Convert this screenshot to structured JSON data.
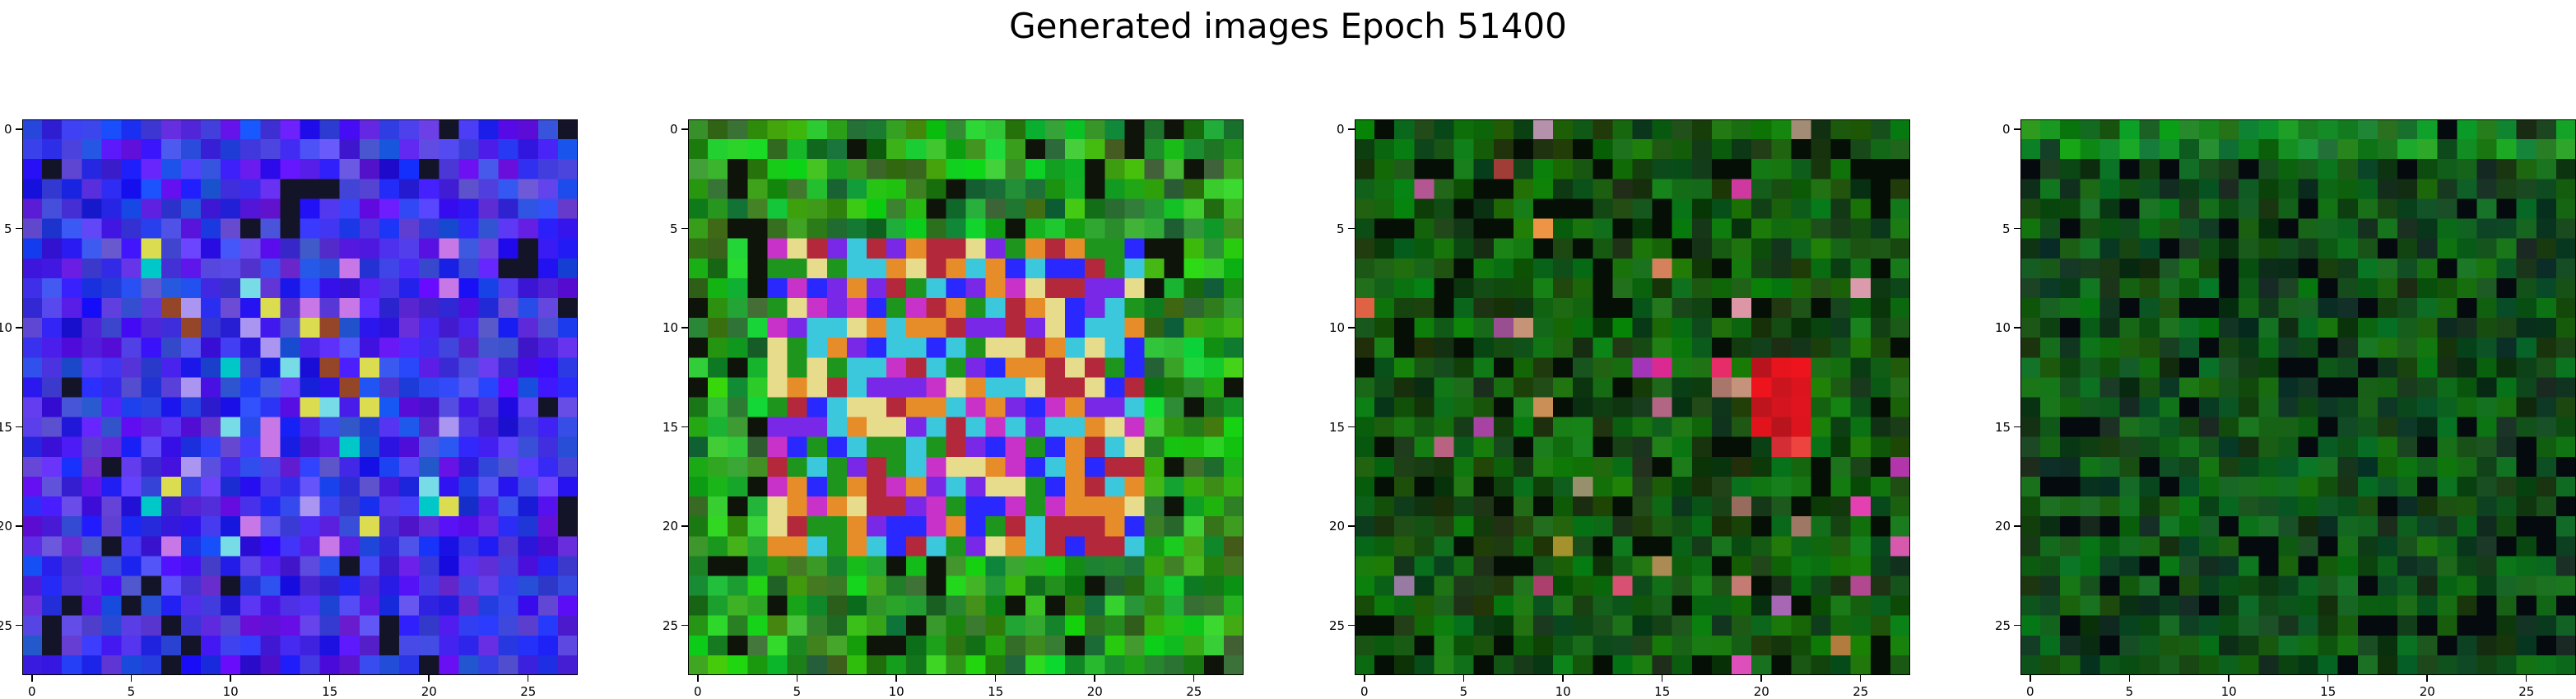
{
  "figure": {
    "title": "Generated images Epoch 51400"
  },
  "chart_data": [
    {
      "type": "heatmap",
      "description_palette": "blue",
      "grid_size": [
        28,
        28
      ],
      "xlim": [
        -0.5,
        27.5
      ],
      "ylim": [
        27.5,
        -0.5
      ],
      "x_ticks": [
        "0",
        "5",
        "10",
        "15",
        "20",
        "25"
      ],
      "y_ticks": [
        "0",
        "5",
        "10",
        "15",
        "20",
        "25"
      ],
      "dominant_color": "#1414e6"
    },
    {
      "type": "heatmap",
      "description_palette": "green-with-multicolor-center",
      "grid_size": [
        28,
        28
      ],
      "xlim": [
        -0.5,
        27.5
      ],
      "ylim": [
        27.5,
        -0.5
      ],
      "x_ticks": [
        "0",
        "5",
        "10",
        "15",
        "20",
        "25"
      ],
      "y_ticks": [
        "0",
        "5",
        "10",
        "15",
        "20",
        "25"
      ],
      "dominant_color": "#1a6a1a"
    },
    {
      "type": "heatmap",
      "description_palette": "dark-green-with-red-spots",
      "grid_size": [
        28,
        28
      ],
      "xlim": [
        -0.5,
        27.5
      ],
      "ylim": [
        27.5,
        -0.5
      ],
      "x_ticks": [
        "0",
        "5",
        "10",
        "15",
        "20",
        "25"
      ],
      "y_ticks": [
        "0",
        "5",
        "10",
        "15",
        "20",
        "25"
      ],
      "dominant_color": "#0f4a0f"
    },
    {
      "type": "heatmap",
      "description_palette": "dark-green",
      "grid_size": [
        28,
        28
      ],
      "xlim": [
        -0.5,
        27.5
      ],
      "ylim": [
        27.5,
        -0.5
      ],
      "x_ticks": [
        "0",
        "5",
        "10",
        "15",
        "20",
        "25"
      ],
      "y_ticks": [
        "0",
        "5",
        "10",
        "15",
        "20",
        "25"
      ],
      "dominant_color": "#0d3f12"
    }
  ]
}
